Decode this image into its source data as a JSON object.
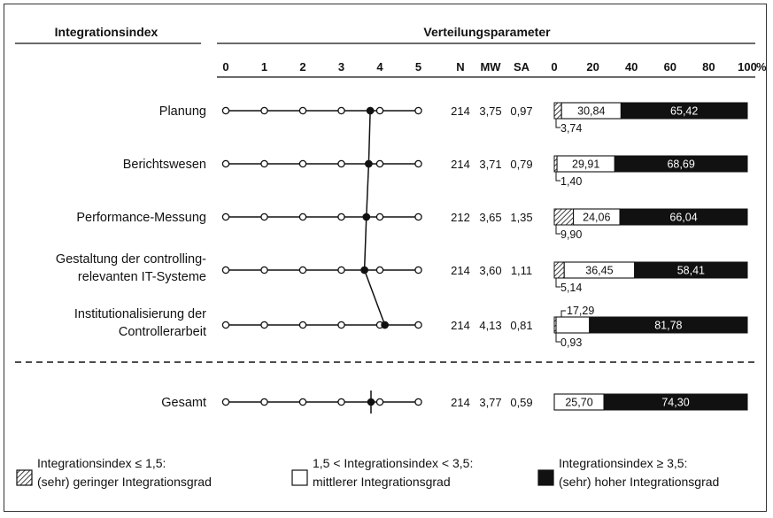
{
  "header": {
    "left_title": "Integrationsindex",
    "right_title": "Verteilungsparameter",
    "col_n": "N",
    "col_mw": "MW",
    "col_sa": "SA"
  },
  "scale_ticks": [
    "0",
    "1",
    "2",
    "3",
    "4",
    "5"
  ],
  "percent_ticks": [
    "0",
    "20",
    "40",
    "60",
    "80",
    "100"
  ],
  "percent_unit": "%",
  "chart_data": {
    "type": "bar",
    "categories": [
      "Planung",
      "Berichtswesen",
      "Performance-Messung",
      "Gestaltung der controlling-relevanten IT-Systeme",
      "Institutionalisierung der Controllerarbeit",
      "Gesamt"
    ],
    "series": [
      {
        "name": "Integrationsindex ≤ 1,5: (sehr) geringer Integrationsgrad",
        "values": [
          3.74,
          1.4,
          9.9,
          5.14,
          0.93,
          0
        ]
      },
      {
        "name": "1,5 < Integrationsindex < 3,5: mittlerer Integrationsgrad",
        "values": [
          30.84,
          29.91,
          24.06,
          36.45,
          17.29,
          25.7
        ]
      },
      {
        "name": "Integrationsindex ≥ 3,5: (sehr) hoher Integrationsgrad",
        "values": [
          65.42,
          68.69,
          66.04,
          58.41,
          81.78,
          74.3
        ]
      }
    ],
    "mean_profile": {
      "scale_range": [
        0,
        5
      ],
      "values": [
        3.75,
        3.71,
        3.65,
        3.6,
        4.13,
        3.77
      ]
    },
    "ylim": [
      0,
      100
    ]
  },
  "rows": [
    {
      "label_lines": [
        "Planung"
      ],
      "n": "214",
      "mw": "3,75",
      "sa": "0,97",
      "low": "3,74",
      "mid": "30,84",
      "high": "65,42",
      "profile": 3.75,
      "low_val": 3.74,
      "mid_val": 30.84,
      "high_val": 65.42
    },
    {
      "label_lines": [
        "Berichtswesen"
      ],
      "n": "214",
      "mw": "3,71",
      "sa": "0,79",
      "low": "1,40",
      "mid": "29,91",
      "high": "68,69",
      "profile": 3.71,
      "low_val": 1.4,
      "mid_val": 29.91,
      "high_val": 68.69
    },
    {
      "label_lines": [
        "Performance-Messung"
      ],
      "n": "212",
      "mw": "3,65",
      "sa": "1,35",
      "low": "9,90",
      "mid": "24,06",
      "high": "66,04",
      "profile": 3.65,
      "low_val": 9.9,
      "mid_val": 24.06,
      "high_val": 66.04
    },
    {
      "label_lines": [
        "Gestaltung der controlling-",
        "relevanten IT-Systeme"
      ],
      "n": "214",
      "mw": "3,60",
      "sa": "1,11",
      "low": "5,14",
      "mid": "36,45",
      "high": "58,41",
      "profile": 3.6,
      "low_val": 5.14,
      "mid_val": 36.45,
      "high_val": 58.41
    },
    {
      "label_lines": [
        "Institutionalisierung der",
        "Controllerarbeit"
      ],
      "n": "214",
      "mw": "4,13",
      "sa": "0,81",
      "low": "0,93",
      "mid": "17,29",
      "high": "81,78",
      "profile": 4.13,
      "low_val": 0.93,
      "mid_val": 17.29,
      "high_val": 81.78
    }
  ],
  "total": {
    "label_lines": [
      "Gesamt"
    ],
    "n": "214",
    "mw": "3,77",
    "sa": "0,59",
    "low": "",
    "mid": "25,70",
    "high": "74,30",
    "profile": 3.77,
    "low_val": 0,
    "mid_val": 25.7,
    "high_val": 74.3
  },
  "legend": [
    {
      "kind": "hatch",
      "lines": [
        "Integrationsindex ≤ 1,5:",
        "(sehr) geringer Integrationsgrad"
      ]
    },
    {
      "kind": "white",
      "lines": [
        "1,5 < Integrationsindex < 3,5:",
        "mittlerer Integrationsgrad"
      ]
    },
    {
      "kind": "black",
      "lines": [
        "Integrationsindex ≥ 3,5:",
        "(sehr) hoher Integrationsgrad"
      ]
    }
  ],
  "colors": {
    "high": "#111111",
    "mid": "#ffffff",
    "line": "#111111"
  }
}
